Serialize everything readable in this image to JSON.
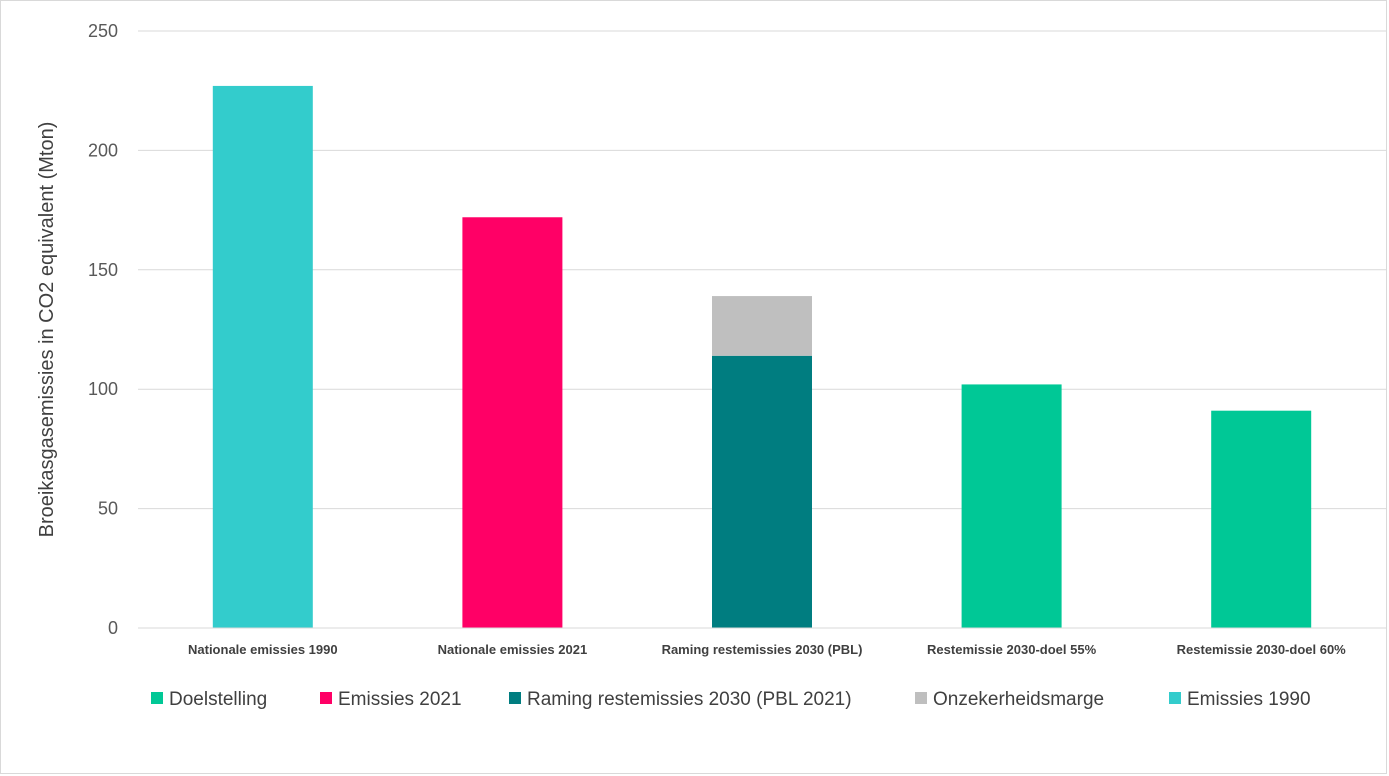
{
  "chart_data": {
    "type": "bar",
    "stacked": true,
    "title": "",
    "xlabel": "",
    "ylabel": "Broeikasgasemissies in CO2 equivalent (Mton)",
    "ylim": [
      0,
      250
    ],
    "yticks": [
      0,
      50,
      100,
      150,
      200,
      250
    ],
    "grid": true,
    "legend_position": "bottom",
    "categories": [
      "Nationale emissies 1990",
      "Nationale emissies 2021",
      "Raming restemissies 2030 (PBL)",
      "Restemissie 2030-doel 55%",
      "Restemissie 2030-doel 60%"
    ],
    "series": [
      {
        "name": "Doelstelling",
        "color": "#00c896",
        "values": [
          0,
          0,
          0,
          102,
          91
        ]
      },
      {
        "name": "Emissies 2021",
        "color": "#ff0066",
        "values": [
          0,
          172,
          0,
          0,
          0
        ]
      },
      {
        "name": "Raming restemissies 2030 (PBL 2021)",
        "color": "#007d80",
        "values": [
          0,
          0,
          114,
          0,
          0
        ]
      },
      {
        "name": "Onzekerheidsmarge",
        "color": "#bfbfbf",
        "values": [
          0,
          0,
          25,
          0,
          0
        ]
      },
      {
        "name": "Emissies 1990",
        "color": "#33cccc",
        "values": [
          227,
          0,
          0,
          0,
          0
        ]
      }
    ]
  }
}
